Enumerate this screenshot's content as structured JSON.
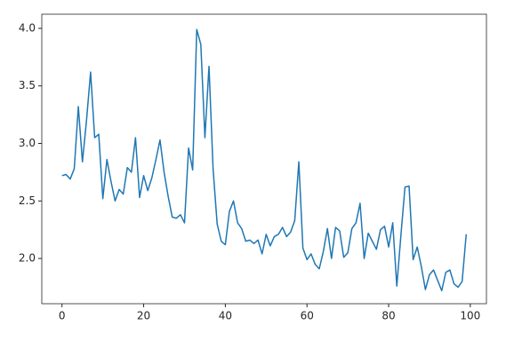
{
  "chart_data": {
    "type": "line",
    "x": [
      0,
      1,
      2,
      3,
      4,
      5,
      6,
      7,
      8,
      9,
      10,
      11,
      12,
      13,
      14,
      15,
      16,
      17,
      18,
      19,
      20,
      21,
      22,
      23,
      24,
      25,
      26,
      27,
      28,
      29,
      30,
      31,
      32,
      33,
      34,
      35,
      36,
      37,
      38,
      39,
      40,
      41,
      42,
      43,
      44,
      45,
      46,
      47,
      48,
      49,
      50,
      51,
      52,
      53,
      54,
      55,
      56,
      57,
      58,
      59,
      60,
      61,
      62,
      63,
      64,
      65,
      66,
      67,
      68,
      69,
      70,
      71,
      72,
      73,
      74,
      75,
      76,
      77,
      78,
      79,
      80,
      81,
      82,
      83,
      84,
      85,
      86,
      87,
      88,
      89,
      90,
      91,
      92,
      93,
      94,
      95,
      96,
      97,
      98,
      99
    ],
    "series": [
      {
        "color": "#1f77b4",
        "values": [
          2.72,
          2.73,
          2.69,
          2.78,
          3.32,
          2.84,
          3.2,
          3.62,
          3.05,
          3.08,
          2.52,
          2.86,
          2.67,
          2.5,
          2.6,
          2.56,
          2.79,
          2.75,
          3.05,
          2.53,
          2.72,
          2.59,
          2.7,
          2.86,
          3.03,
          2.75,
          2.54,
          2.36,
          2.35,
          2.38,
          2.31,
          2.96,
          2.77,
          3.99,
          3.86,
          3.05,
          3.67,
          2.78,
          2.3,
          2.15,
          2.12,
          2.41,
          2.5,
          2.31,
          2.26,
          2.15,
          2.16,
          2.13,
          2.16,
          2.04,
          2.21,
          2.11,
          2.19,
          2.21,
          2.27,
          2.19,
          2.23,
          2.33,
          2.84,
          2.09,
          1.99,
          2.04,
          1.95,
          1.91,
          2.06,
          2.26,
          2.0,
          2.27,
          2.24,
          2.01,
          2.05,
          2.26,
          2.31,
          2.48,
          2.0,
          2.22,
          2.15,
          2.08,
          2.25,
          2.28,
          2.1,
          2.31,
          1.76,
          2.2,
          2.62,
          2.63,
          1.99,
          2.1,
          1.93,
          1.73,
          1.86,
          1.9,
          1.81,
          1.72,
          1.88,
          1.9,
          1.78,
          1.75,
          1.8,
          2.21
        ]
      }
    ],
    "xlim": [
      -4.95,
      103.95
    ],
    "xticks": [
      0,
      20,
      40,
      60,
      80,
      100
    ],
    "ylim": [
      1.607,
      4.123
    ],
    "yticks": [
      {
        "value": 2,
        "label": "2.0"
      },
      2.5,
      {
        "value": 3,
        "label": "3.0"
      },
      3.5,
      {
        "value": 4,
        "label": "4.0"
      }
    ]
  }
}
